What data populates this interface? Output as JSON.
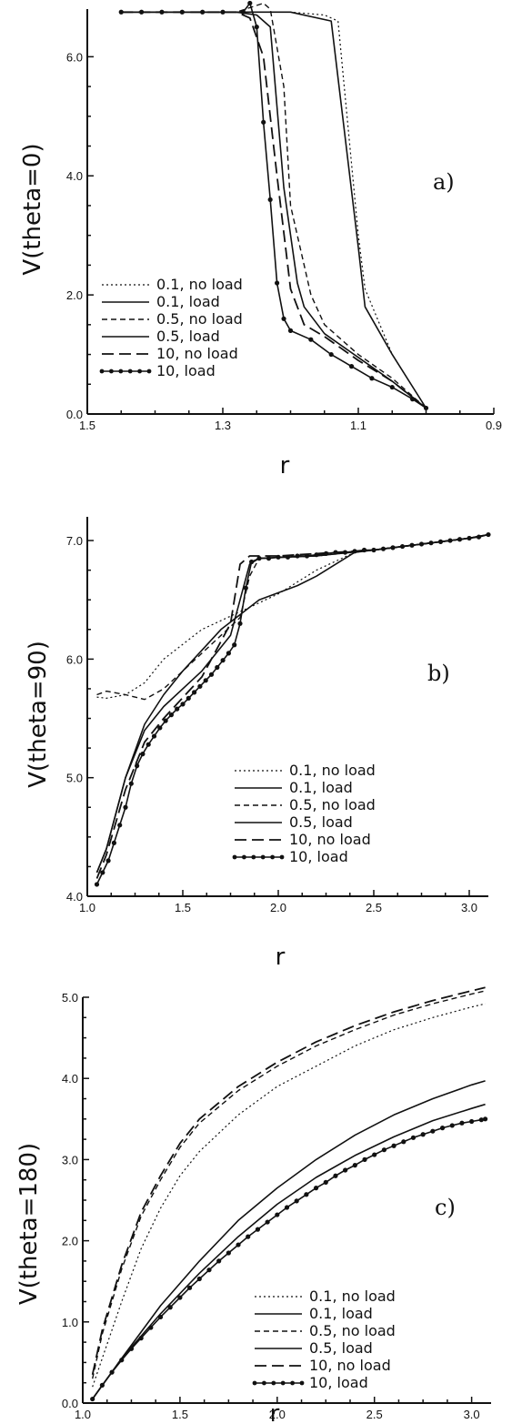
{
  "chart_data": [
    {
      "type": "line",
      "panel_label": "a)",
      "xlabel": "r",
      "ylabel": "V(theta=0)",
      "xlim": [
        1.5,
        0.9
      ],
      "ylim": [
        0.0,
        6.8
      ],
      "x_reversed": true,
      "x_ticks": [
        1.5,
        1.3,
        1.1,
        0.9
      ],
      "x_tick_labels": [
        "1.5",
        "1.3",
        "1.1",
        "0.9"
      ],
      "y_ticks": [
        0.0,
        2.0,
        4.0,
        6.0
      ],
      "y_tick_labels": [
        "0.0",
        "2.0",
        "4.0",
        "6.0"
      ],
      "legend_position": "lower-left",
      "series": [
        {
          "name": "0.1, no load",
          "style": "dotted",
          "x": [
            1.45,
            1.3,
            1.2,
            1.15,
            1.13,
            1.1,
            1.09,
            1.05,
            1.0
          ],
          "y": [
            6.75,
            6.75,
            6.75,
            6.7,
            6.6,
            3.0,
            2.1,
            1.0,
            0.1
          ]
        },
        {
          "name": "0.1, load",
          "style": "solid",
          "x": [
            1.45,
            1.3,
            1.2,
            1.14,
            1.1,
            1.09,
            1.05,
            1.0
          ],
          "y": [
            6.75,
            6.75,
            6.75,
            6.6,
            2.8,
            1.8,
            1.0,
            0.1
          ]
        },
        {
          "name": "0.5, no load",
          "style": "dashed-short",
          "x": [
            1.45,
            1.28,
            1.24,
            1.23,
            1.21,
            1.2,
            1.17,
            1.15,
            1.1,
            1.05,
            1.0
          ],
          "y": [
            6.75,
            6.75,
            6.9,
            6.8,
            5.5,
            3.5,
            2.0,
            1.5,
            1.0,
            0.6,
            0.1
          ]
        },
        {
          "name": "0.5, load",
          "style": "solid",
          "x": [
            1.45,
            1.28,
            1.25,
            1.23,
            1.21,
            1.19,
            1.18,
            1.15,
            1.1,
            1.05,
            1.0
          ],
          "y": [
            6.75,
            6.75,
            6.7,
            6.5,
            3.8,
            2.2,
            1.8,
            1.35,
            0.95,
            0.55,
            0.1
          ]
        },
        {
          "name": "10, no load",
          "style": "dashed-long",
          "x": [
            1.45,
            1.28,
            1.26,
            1.24,
            1.22,
            1.2,
            1.18,
            1.15,
            1.1,
            1.05,
            1.0
          ],
          "y": [
            6.75,
            6.75,
            6.65,
            6.0,
            4.0,
            2.1,
            1.5,
            1.3,
            0.9,
            0.55,
            0.1
          ]
        },
        {
          "name": "10, load",
          "style": "dots-line",
          "x": [
            1.45,
            1.42,
            1.39,
            1.36,
            1.33,
            1.3,
            1.27,
            1.26,
            1.25,
            1.24,
            1.23,
            1.22,
            1.21,
            1.2,
            1.17,
            1.14,
            1.11,
            1.08,
            1.05,
            1.02,
            1.0
          ],
          "y": [
            6.75,
            6.75,
            6.75,
            6.75,
            6.75,
            6.75,
            6.75,
            6.9,
            6.5,
            4.9,
            3.6,
            2.2,
            1.6,
            1.4,
            1.25,
            1.0,
            0.8,
            0.6,
            0.45,
            0.25,
            0.1
          ]
        }
      ]
    },
    {
      "type": "line",
      "panel_label": "b)",
      "xlabel": "r",
      "ylabel": "V(theta=90)",
      "xlim": [
        1.0,
        3.1
      ],
      "ylim": [
        4.0,
        7.2
      ],
      "x_ticks": [
        1.0,
        1.5,
        2.0,
        2.5,
        3.0
      ],
      "x_tick_labels": [
        "1.0",
        "1.5",
        "2.0",
        "2.5",
        "3.0"
      ],
      "y_ticks": [
        4.0,
        5.0,
        6.0,
        7.0
      ],
      "y_tick_labels": [
        "4.0",
        "5.0",
        "6.0",
        "7.0"
      ],
      "legend_position": "lower-right",
      "series": [
        {
          "name": "0.1, no load",
          "style": "dotted",
          "x": [
            1.05,
            1.1,
            1.2,
            1.3,
            1.4,
            1.6,
            1.8,
            2.0,
            2.2,
            2.4,
            2.7,
            3.0,
            3.1
          ],
          "y": [
            5.68,
            5.67,
            5.7,
            5.8,
            6.0,
            6.25,
            6.4,
            6.55,
            6.75,
            6.9,
            6.96,
            7.02,
            7.05
          ]
        },
        {
          "name": "0.1, load",
          "style": "solid",
          "x": [
            1.05,
            1.1,
            1.2,
            1.3,
            1.4,
            1.5,
            1.7,
            1.9,
            2.1,
            2.2,
            2.4,
            2.7,
            3.0,
            3.1
          ],
          "y": [
            4.2,
            4.4,
            5.0,
            5.45,
            5.7,
            5.9,
            6.25,
            6.5,
            6.62,
            6.7,
            6.9,
            6.96,
            7.02,
            7.05
          ]
        },
        {
          "name": "0.5, no load",
          "style": "dashed-short",
          "x": [
            1.05,
            1.1,
            1.2,
            1.3,
            1.4,
            1.6,
            1.8,
            1.85,
            1.9,
            2.2,
            2.5,
            3.0,
            3.1
          ],
          "y": [
            5.7,
            5.73,
            5.7,
            5.66,
            5.75,
            6.05,
            6.35,
            6.7,
            6.85,
            6.87,
            6.92,
            7.02,
            7.05
          ]
        },
        {
          "name": "0.5, load",
          "style": "solid",
          "x": [
            1.05,
            1.1,
            1.2,
            1.3,
            1.4,
            1.6,
            1.75,
            1.8,
            1.85,
            1.9,
            2.2,
            2.5,
            3.0,
            3.1
          ],
          "y": [
            4.2,
            4.4,
            5.0,
            5.4,
            5.6,
            5.9,
            6.2,
            6.5,
            6.8,
            6.85,
            6.87,
            6.92,
            7.02,
            7.05
          ]
        },
        {
          "name": "10, no load",
          "style": "dashed-long",
          "x": [
            1.05,
            1.1,
            1.2,
            1.3,
            1.4,
            1.6,
            1.75,
            1.8,
            1.85,
            2.0,
            2.5,
            3.0,
            3.1
          ],
          "y": [
            4.15,
            4.35,
            4.9,
            5.3,
            5.5,
            5.85,
            6.3,
            6.8,
            6.87,
            6.87,
            6.92,
            7.02,
            7.05
          ]
        },
        {
          "name": "10, load",
          "style": "dots-line",
          "x": [
            1.05,
            1.08,
            1.11,
            1.14,
            1.17,
            1.2,
            1.23,
            1.26,
            1.29,
            1.32,
            1.35,
            1.38,
            1.41,
            1.44,
            1.47,
            1.5,
            1.53,
            1.56,
            1.59,
            1.62,
            1.65,
            1.68,
            1.71,
            1.74,
            1.77,
            1.8,
            1.83,
            1.86,
            1.9,
            1.95,
            2.0,
            2.05,
            2.1,
            2.15,
            2.2,
            2.25,
            2.3,
            2.35,
            2.4,
            2.45,
            2.5,
            2.55,
            2.6,
            2.65,
            2.7,
            2.75,
            2.8,
            2.85,
            2.9,
            2.95,
            3.0,
            3.05,
            3.1
          ],
          "y": [
            4.1,
            4.2,
            4.3,
            4.45,
            4.6,
            4.75,
            4.95,
            5.1,
            5.2,
            5.28,
            5.35,
            5.42,
            5.48,
            5.53,
            5.58,
            5.62,
            5.67,
            5.72,
            5.77,
            5.82,
            5.87,
            5.93,
            5.99,
            6.05,
            6.12,
            6.3,
            6.6,
            6.82,
            6.85,
            6.85,
            6.86,
            6.86,
            6.87,
            6.87,
            6.88,
            6.89,
            6.9,
            6.9,
            6.91,
            6.92,
            6.92,
            6.93,
            6.94,
            6.95,
            6.96,
            6.97,
            6.98,
            6.99,
            7.0,
            7.01,
            7.02,
            7.03,
            7.05
          ]
        }
      ]
    },
    {
      "type": "line",
      "panel_label": "c)",
      "xlabel": "r",
      "ylabel": "V(theta=180)",
      "xlim": [
        1.0,
        3.1
      ],
      "ylim": [
        0.0,
        5.0
      ],
      "x_ticks": [
        1.0,
        1.5,
        2.0,
        2.5,
        3.0
      ],
      "x_tick_labels": [
        "1.0",
        "1.5",
        "2.0",
        "2.5",
        "3.0"
      ],
      "y_ticks": [
        0.0,
        1.0,
        2.0,
        3.0,
        4.0,
        5.0
      ],
      "y_tick_labels": [
        "0.0",
        "1.0",
        "2.0",
        "3.0",
        "4.0",
        "5.0"
      ],
      "legend_position": "lower-right",
      "series": [
        {
          "name": "0.1, no load",
          "style": "dotted",
          "x": [
            1.05,
            1.1,
            1.2,
            1.3,
            1.4,
            1.5,
            1.6,
            1.8,
            2.0,
            2.2,
            2.4,
            2.6,
            2.8,
            3.0,
            3.07
          ],
          "y": [
            0.2,
            0.55,
            1.25,
            1.9,
            2.4,
            2.8,
            3.1,
            3.55,
            3.9,
            4.15,
            4.4,
            4.6,
            4.75,
            4.88,
            4.92
          ]
        },
        {
          "name": "0.1, load",
          "style": "solid",
          "x": [
            1.05,
            1.2,
            1.4,
            1.6,
            1.8,
            2.0,
            2.2,
            2.4,
            2.6,
            2.8,
            3.0,
            3.07
          ],
          "y": [
            0.05,
            0.55,
            1.2,
            1.75,
            2.25,
            2.65,
            3.0,
            3.3,
            3.55,
            3.75,
            3.92,
            3.97
          ]
        },
        {
          "name": "0.5, no load",
          "style": "dashed-short",
          "x": [
            1.05,
            1.1,
            1.2,
            1.3,
            1.4,
            1.5,
            1.6,
            1.8,
            2.0,
            2.2,
            2.4,
            2.6,
            2.8,
            3.0,
            3.07
          ],
          "y": [
            0.3,
            0.85,
            1.65,
            2.3,
            2.75,
            3.15,
            3.45,
            3.85,
            4.15,
            4.4,
            4.6,
            4.78,
            4.92,
            5.04,
            5.08
          ]
        },
        {
          "name": "0.5, load",
          "style": "solid",
          "x": [
            1.05,
            1.2,
            1.4,
            1.6,
            1.8,
            2.0,
            2.2,
            2.4,
            2.6,
            2.8,
            3.0,
            3.07
          ],
          "y": [
            0.05,
            0.55,
            1.1,
            1.6,
            2.05,
            2.45,
            2.78,
            3.05,
            3.28,
            3.48,
            3.63,
            3.68
          ]
        },
        {
          "name": "10, no load",
          "style": "dashed-long",
          "x": [
            1.05,
            1.1,
            1.2,
            1.3,
            1.4,
            1.5,
            1.6,
            1.8,
            2.0,
            2.2,
            2.4,
            2.6,
            2.8,
            3.0,
            3.07
          ],
          "y": [
            0.35,
            0.9,
            1.7,
            2.35,
            2.8,
            3.2,
            3.5,
            3.9,
            4.2,
            4.45,
            4.65,
            4.82,
            4.96,
            5.08,
            5.12
          ]
        },
        {
          "name": "10, load",
          "style": "dots-line",
          "x": [
            1.05,
            1.1,
            1.15,
            1.2,
            1.25,
            1.3,
            1.35,
            1.4,
            1.45,
            1.5,
            1.55,
            1.6,
            1.65,
            1.7,
            1.75,
            1.8,
            1.85,
            1.9,
            1.95,
            2.0,
            2.05,
            2.1,
            2.15,
            2.2,
            2.25,
            2.3,
            2.35,
            2.4,
            2.45,
            2.5,
            2.55,
            2.6,
            2.65,
            2.7,
            2.75,
            2.8,
            2.85,
            2.9,
            2.95,
            3.0,
            3.05,
            3.07
          ],
          "y": [
            0.05,
            0.22,
            0.38,
            0.53,
            0.67,
            0.8,
            0.93,
            1.06,
            1.18,
            1.3,
            1.42,
            1.53,
            1.64,
            1.75,
            1.85,
            1.95,
            2.05,
            2.14,
            2.23,
            2.32,
            2.41,
            2.49,
            2.57,
            2.65,
            2.72,
            2.8,
            2.87,
            2.93,
            3.0,
            3.06,
            3.12,
            3.17,
            3.22,
            3.27,
            3.31,
            3.35,
            3.39,
            3.42,
            3.45,
            3.47,
            3.49,
            3.5
          ]
        }
      ]
    }
  ]
}
